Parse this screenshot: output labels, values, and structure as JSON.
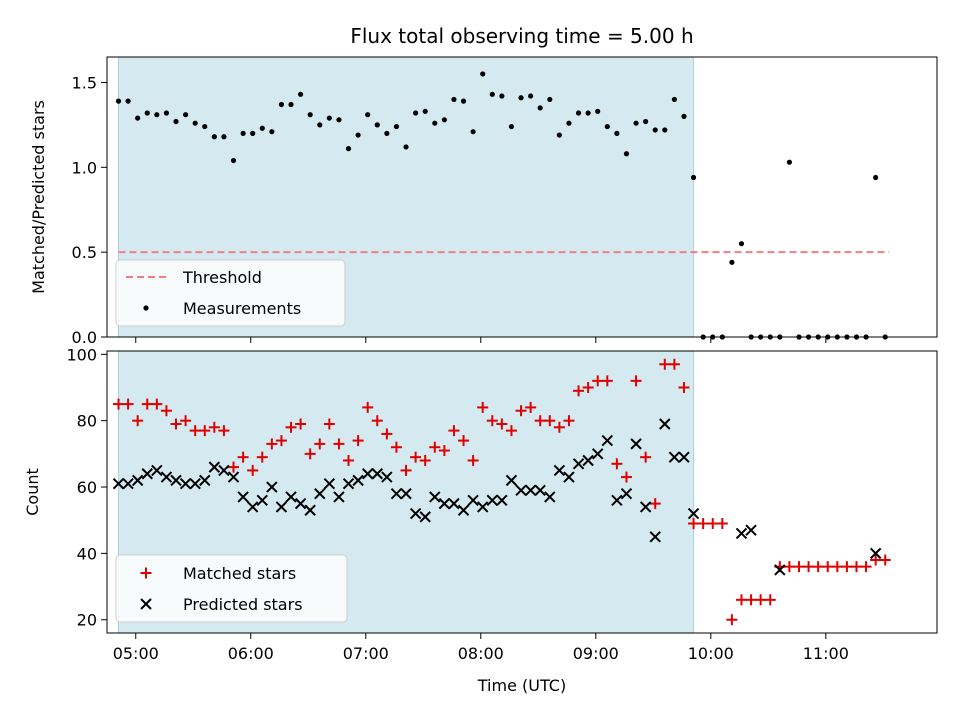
{
  "colors": {
    "shade": "#d4eaf0",
    "shade_edge": "#a9d3dd",
    "threshold": "#f07f7f",
    "measurement": "#000000",
    "matched": "#e00000",
    "predicted": "#000000"
  },
  "chart_data": [
    {
      "type": "scatter",
      "title": "Flux total observing time = 5.00 h",
      "xlabel": "",
      "ylabel": "Matched/Predicted stars",
      "xlim": [
        "04:45",
        "11:58"
      ],
      "ylim": [
        0,
        1.65
      ],
      "yticks": [
        {
          "value": 0.0,
          "label": "0.0"
        },
        {
          "value": 0.5,
          "label": "0.5"
        },
        {
          "value": 1.0,
          "label": "1.0"
        },
        {
          "value": 1.5,
          "label": "1.5"
        }
      ],
      "shaded_interval": [
        "04:51",
        "09:51"
      ],
      "threshold": {
        "name": "Threshold",
        "value": 0.5,
        "x_start": "04:51",
        "x_end": "11:33"
      },
      "legend": {
        "placement": "lower-left",
        "entries": [
          "Threshold",
          "Measurements"
        ]
      },
      "series": [
        {
          "name": "Measurements",
          "x": [
            "04:51",
            "04:56",
            "05:01",
            "05:06",
            "05:11",
            "05:16",
            "05:21",
            "05:26",
            "05:31",
            "05:36",
            "05:41",
            "05:46",
            "05:51",
            "05:56",
            "06:01",
            "06:06",
            "06:11",
            "06:16",
            "06:21",
            "06:26",
            "06:31",
            "06:36",
            "06:41",
            "06:46",
            "06:51",
            "06:56",
            "07:01",
            "07:06",
            "07:11",
            "07:16",
            "07:21",
            "07:26",
            "07:31",
            "07:36",
            "07:41",
            "07:46",
            "07:51",
            "07:56",
            "08:01",
            "08:06",
            "08:11",
            "08:16",
            "08:21",
            "08:26",
            "08:31",
            "08:36",
            "08:41",
            "08:46",
            "08:51",
            "08:56",
            "09:01",
            "09:06",
            "09:11",
            "09:16",
            "09:21",
            "09:26",
            "09:31",
            "09:36",
            "09:41",
            "09:46",
            "09:51",
            "09:56",
            "10:01",
            "10:06",
            "10:11",
            "10:16",
            "10:21",
            "10:26",
            "10:31",
            "10:36",
            "10:41",
            "10:46",
            "10:51",
            "10:56",
            "11:01",
            "11:06",
            "11:11",
            "11:16",
            "11:21",
            "11:26",
            "11:31"
          ],
          "y": [
            1.39,
            1.39,
            1.29,
            1.32,
            1.31,
            1.32,
            1.27,
            1.31,
            1.26,
            1.24,
            1.18,
            1.18,
            1.04,
            1.2,
            1.2,
            1.23,
            1.21,
            1.37,
            1.37,
            1.43,
            1.31,
            1.25,
            1.29,
            1.28,
            1.11,
            1.19,
            1.31,
            1.25,
            1.2,
            1.24,
            1.12,
            1.32,
            1.33,
            1.26,
            1.28,
            1.4,
            1.39,
            1.21,
            1.55,
            1.43,
            1.42,
            1.24,
            1.41,
            1.42,
            1.35,
            1.4,
            1.19,
            1.26,
            1.32,
            1.32,
            1.33,
            1.24,
            1.2,
            1.08,
            1.26,
            1.27,
            1.22,
            1.22,
            1.4,
            1.3,
            0.94,
            0.0,
            0.0,
            0.0,
            0.44,
            0.55,
            0.0,
            0.0,
            0.0,
            0.0,
            1.03,
            0.0,
            0.0,
            0.0,
            0.0,
            0.0,
            0.0,
            0.0,
            0.0,
            0.94,
            0.0
          ]
        }
      ]
    },
    {
      "type": "scatter",
      "title": "",
      "xlabel": "Time (UTC)",
      "ylabel": "Count",
      "xlim": [
        "04:45",
        "11:58"
      ],
      "ylim": [
        16,
        101
      ],
      "xticks": [
        "05:00",
        "06:00",
        "07:00",
        "08:00",
        "09:00",
        "10:00",
        "11:00"
      ],
      "yticks": [
        {
          "value": 20,
          "label": "20"
        },
        {
          "value": 40,
          "label": "40"
        },
        {
          "value": 60,
          "label": "60"
        },
        {
          "value": 80,
          "label": "80"
        },
        {
          "value": 100,
          "label": "100"
        }
      ],
      "shaded_interval": [
        "04:51",
        "09:51"
      ],
      "legend": {
        "placement": "lower-left",
        "entries": [
          "Matched stars",
          "Predicted stars"
        ]
      },
      "series": [
        {
          "name": "Matched stars",
          "marker": "plus",
          "x": [
            "04:51",
            "04:56",
            "05:01",
            "05:06",
            "05:11",
            "05:16",
            "05:21",
            "05:26",
            "05:31",
            "05:36",
            "05:41",
            "05:46",
            "05:51",
            "05:56",
            "06:01",
            "06:06",
            "06:11",
            "06:16",
            "06:21",
            "06:26",
            "06:31",
            "06:36",
            "06:41",
            "06:46",
            "06:51",
            "06:56",
            "07:01",
            "07:06",
            "07:11",
            "07:16",
            "07:21",
            "07:26",
            "07:31",
            "07:36",
            "07:41",
            "07:46",
            "07:51",
            "07:56",
            "08:01",
            "08:06",
            "08:11",
            "08:16",
            "08:21",
            "08:26",
            "08:31",
            "08:36",
            "08:41",
            "08:46",
            "08:51",
            "08:56",
            "09:01",
            "09:06",
            "09:11",
            "09:16",
            "09:21",
            "09:26",
            "09:31",
            "09:36",
            "09:41",
            "09:46",
            "09:51",
            "09:56",
            "10:01",
            "10:06",
            "10:11",
            "10:16",
            "10:21",
            "10:26",
            "10:31",
            "10:36",
            "10:41",
            "10:46",
            "10:51",
            "10:56",
            "11:01",
            "11:06",
            "11:11",
            "11:16",
            "11:21",
            "11:26",
            "11:31"
          ],
          "y": [
            85,
            85,
            80,
            85,
            85,
            83,
            79,
            80,
            77,
            77,
            78,
            77,
            66,
            69,
            65,
            69,
            73,
            74,
            78,
            79,
            70,
            73,
            79,
            73,
            68,
            74,
            84,
            80,
            76,
            72,
            65,
            69,
            68,
            72,
            71,
            77,
            74,
            68,
            84,
            80,
            79,
            77,
            83,
            84,
            80,
            80,
            78,
            80,
            89,
            90,
            92,
            92,
            67,
            63,
            92,
            69,
            55,
            97,
            97,
            90,
            49,
            49,
            49,
            49,
            20,
            26,
            26,
            26,
            26,
            36,
            36,
            36,
            36,
            36,
            36,
            36,
            36,
            36,
            36,
            38,
            38
          ]
        },
        {
          "name": "Predicted stars",
          "marker": "x",
          "x": [
            "04:51",
            "04:56",
            "05:01",
            "05:06",
            "05:11",
            "05:16",
            "05:21",
            "05:26",
            "05:31",
            "05:36",
            "05:41",
            "05:46",
            "05:51",
            "05:56",
            "06:01",
            "06:06",
            "06:11",
            "06:16",
            "06:21",
            "06:26",
            "06:31",
            "06:36",
            "06:41",
            "06:46",
            "06:51",
            "06:56",
            "07:01",
            "07:06",
            "07:11",
            "07:16",
            "07:21",
            "07:26",
            "07:31",
            "07:36",
            "07:41",
            "07:46",
            "07:51",
            "07:56",
            "08:01",
            "08:06",
            "08:11",
            "08:16",
            "08:21",
            "08:26",
            "08:31",
            "08:36",
            "08:41",
            "08:46",
            "08:51",
            "08:56",
            "09:01",
            "09:06",
            "09:11",
            "09:16",
            "09:21",
            "09:26",
            "09:31",
            "09:36",
            "09:41",
            "09:46",
            "09:51",
            "10:16",
            "10:21",
            "10:36",
            "11:26"
          ],
          "y": [
            61,
            61,
            62,
            64,
            65,
            63,
            62,
            61,
            61,
            62,
            66,
            65,
            63,
            57,
            54,
            56,
            60,
            54,
            57,
            55,
            53,
            58,
            61,
            57,
            61,
            62,
            64,
            64,
            63,
            58,
            58,
            52,
            51,
            57,
            55,
            55,
            53,
            56,
            54,
            56,
            56,
            62,
            59,
            59,
            59,
            57,
            65,
            63,
            67,
            68,
            70,
            74,
            56,
            58,
            73,
            54,
            45,
            79,
            69,
            69,
            52,
            46,
            47,
            35,
            40
          ]
        }
      ]
    }
  ]
}
